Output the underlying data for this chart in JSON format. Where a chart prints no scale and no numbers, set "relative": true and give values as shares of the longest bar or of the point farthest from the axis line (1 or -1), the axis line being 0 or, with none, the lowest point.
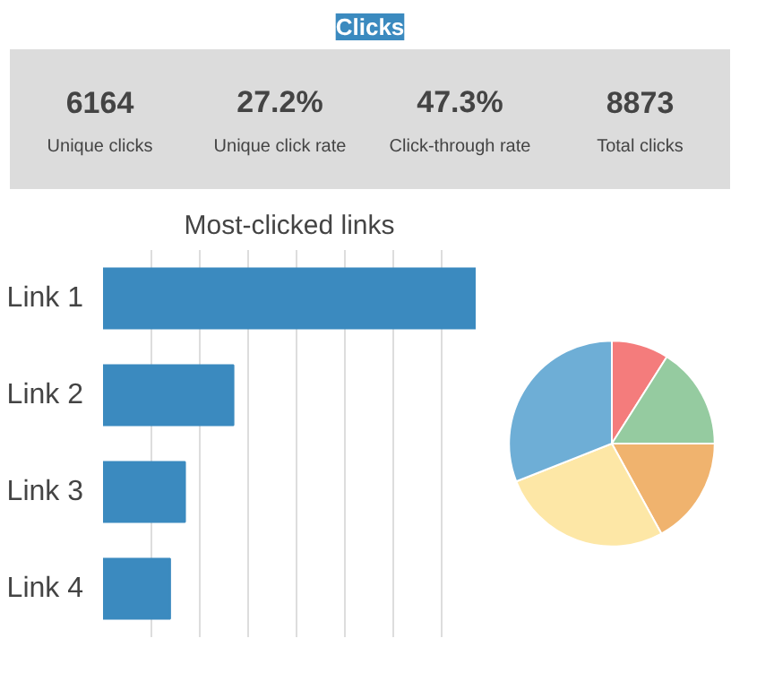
{
  "chart_data": [
    {
      "type": "other",
      "title": "Clicks",
      "annotations": [
        "6164",
        "Unique clicks",
        "27.2%",
        "Unique click rate",
        "47.3%",
        "Click-through rate",
        "8873",
        "Total clicks"
      ]
    },
    {
      "type": "bar",
      "title": "Most-clicked links",
      "orientation": "horizontal",
      "relative": true,
      "categories": [
        "Link 1",
        "Link 2",
        "Link 3",
        "Link 4"
      ],
      "values": [
        1,
        0.35,
        0.22,
        0.18
      ],
      "color": "#3b8abf",
      "grid": "x"
    },
    {
      "type": "pie",
      "categories": [
        null,
        null,
        null,
        null,
        null
      ],
      "values": [
        9,
        16,
        17,
        27,
        31
      ],
      "colors": [
        "#f47c7c",
        "#95cba0",
        "#f0b36e",
        "#fde7a6",
        "#6eaed6"
      ]
    }
  ]
}
